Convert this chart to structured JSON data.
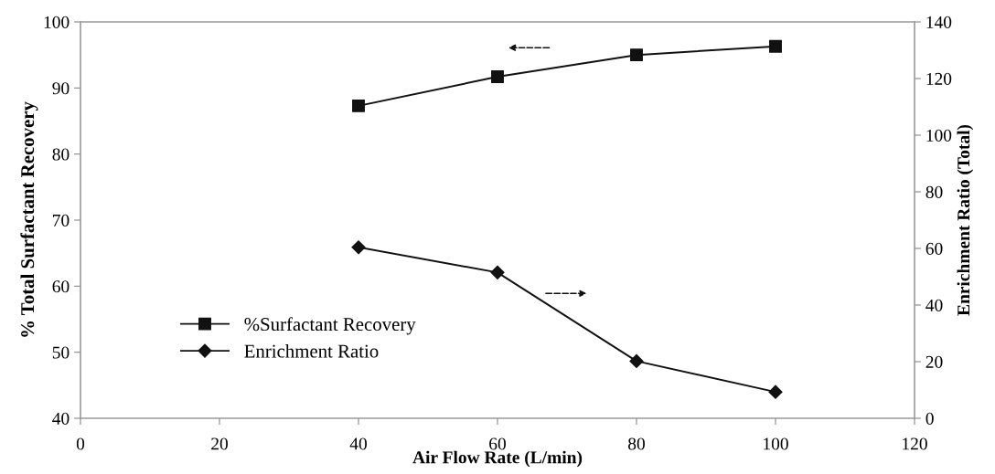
{
  "chart_data": {
    "type": "line",
    "xlabel": "Air Flow Rate (L/min)",
    "ylabel": "% Total Surfactant Recovery",
    "y2label": "Enrichment Ratio (Total)",
    "x": [
      40,
      60,
      80,
      100
    ],
    "series": [
      {
        "name": "%Surfactant Recovery",
        "color": "#111111",
        "values": [
          87.3,
          91.7,
          95.0,
          96.3
        ],
        "marker": "square"
      },
      {
        "name": "Enrichment Ratio",
        "color": "#111111",
        "values": [
          60.4,
          51.5,
          20.2,
          9.3
        ],
        "marker": "diamond",
        "axis": "y2"
      }
    ],
    "xlim": [
      0,
      120
    ],
    "xticks": [
      0,
      20,
      40,
      60,
      80,
      100,
      120
    ],
    "ylim": [
      40,
      100
    ],
    "yticks": [
      40,
      50,
      60,
      70,
      80,
      90,
      100
    ],
    "y2lim": [
      0,
      140
    ],
    "y2ticks": [
      0,
      20,
      40,
      60,
      80,
      100,
      120,
      140
    ],
    "grid": false,
    "legend": "lower left",
    "line_style": "solid"
  }
}
